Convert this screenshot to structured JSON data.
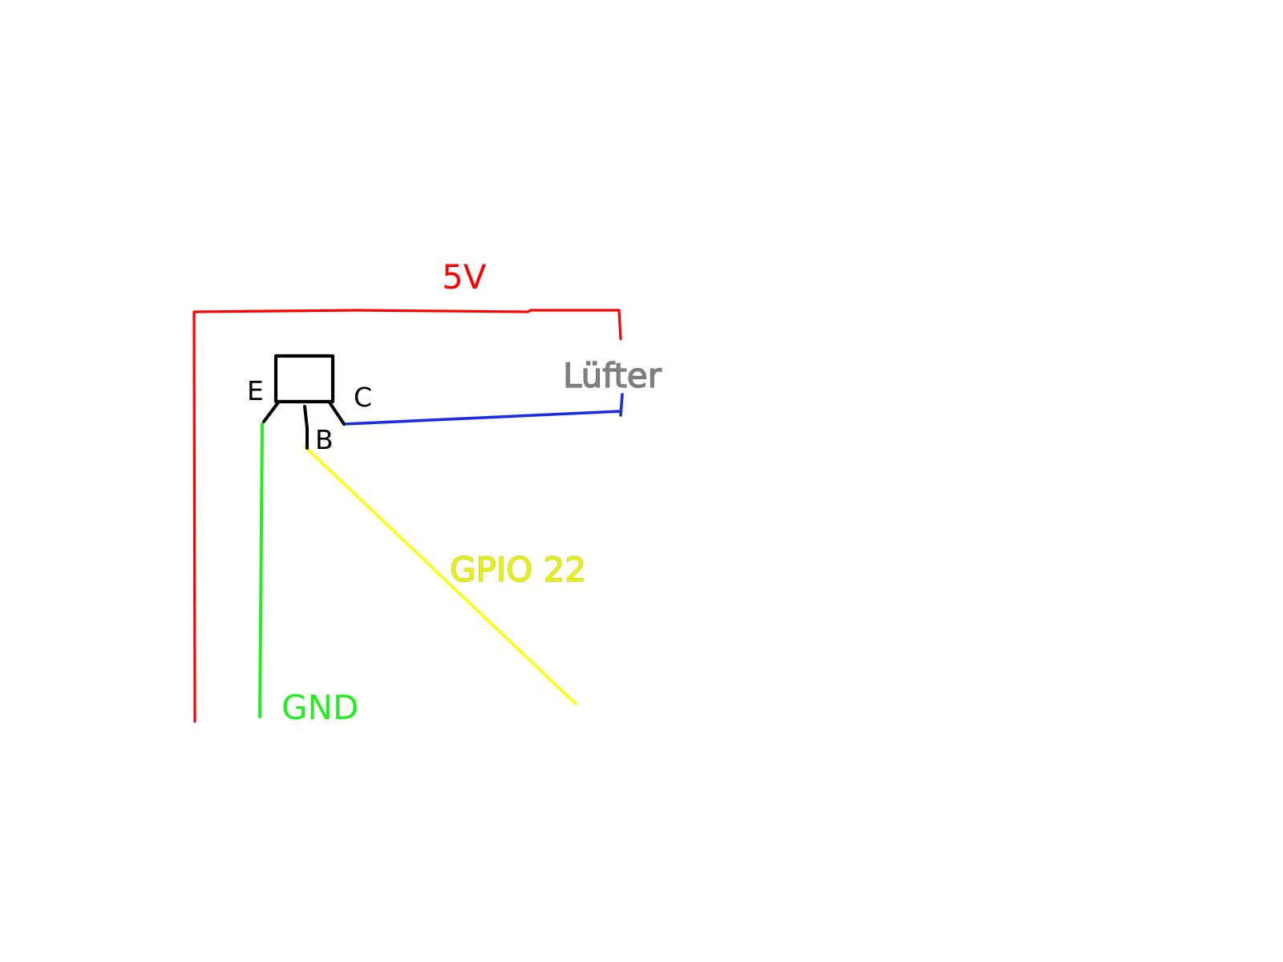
{
  "colors": {
    "supply": "#ff0000",
    "ground": "#22ee22",
    "signal": "#ffff00",
    "signal_text": "#e8ee1a",
    "signal_text_outline": "#c8cc00",
    "collector": "#1a2be8",
    "transistor": "#000000",
    "fan_label": "#808080",
    "fan_label_outline": "#666666",
    "pin_label": "#000000",
    "background": "#ffffff"
  },
  "labels": {
    "supply": "5V",
    "fan": "Lüfter",
    "ground": "GND",
    "gpio": "GPIO 22",
    "emitter": "E",
    "base": "B",
    "collector": "C"
  },
  "components": {
    "transistor": {
      "symbol": "npn-transistor",
      "pins": [
        "E",
        "B",
        "C"
      ]
    },
    "fan": {
      "symbol": "fan"
    }
  },
  "connections": [
    {
      "wire": "supply",
      "from": "5V",
      "to": "Lüfter"
    },
    {
      "wire": "collector",
      "from": "C",
      "to": "Lüfter"
    },
    {
      "wire": "ground",
      "from": "E",
      "to": "GND"
    },
    {
      "wire": "signal",
      "from": "B",
      "to": "GPIO 22"
    }
  ]
}
